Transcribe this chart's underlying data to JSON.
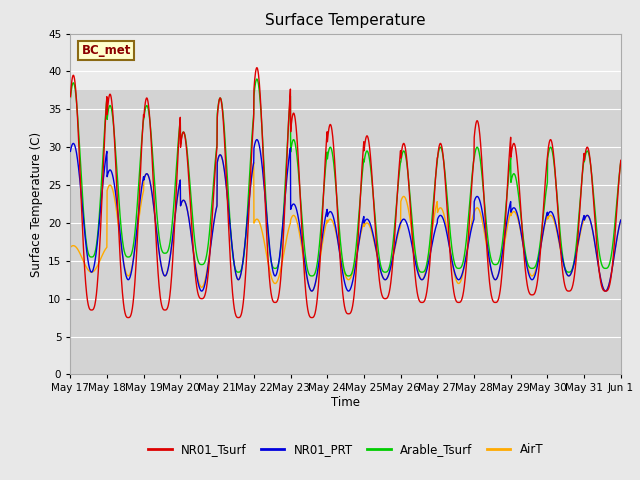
{
  "title": "Surface Temperature",
  "ylabel": "Surface Temperature (C)",
  "xlabel": "Time",
  "annotation": "BC_met",
  "ylim": [
    0,
    45
  ],
  "yticks": [
    0,
    5,
    10,
    15,
    20,
    25,
    30,
    35,
    40,
    45
  ],
  "fig_facecolor": "#e8e8e8",
  "ax_facecolor": "#d3d3d3",
  "colors": {
    "NR01_Tsurf": "#dd0000",
    "NR01_PRT": "#0000dd",
    "Arable_Tsurf": "#00cc00",
    "AirT": "#ffaa00"
  },
  "legend_labels": [
    "NR01_Tsurf",
    "NR01_PRT",
    "Arable_Tsurf",
    "AirT"
  ],
  "x_tick_labels": [
    "May 17",
    "May 18",
    "May 19",
    "May 20",
    "May 21",
    "May 22",
    "May 23",
    "May 24",
    "May 25",
    "May 26",
    "May 27",
    "May 28",
    "May 29",
    "May 30",
    "May 31",
    "Jun 1"
  ],
  "n_days": 15,
  "pts_per_day": 144,
  "peak_phase": 0.58,
  "sharpness": 3.0,
  "peaks_NR01_Tsurf": [
    39.5,
    37.0,
    36.5,
    32.0,
    36.5,
    40.5,
    34.5,
    33.0,
    31.5,
    30.5,
    30.5,
    33.5,
    30.5,
    31.0,
    30.0
  ],
  "troughs_NR01_Tsurf": [
    8.5,
    7.5,
    8.5,
    10.0,
    7.5,
    9.5,
    7.5,
    8.0,
    10.0,
    9.5,
    9.5,
    9.5,
    10.5,
    11.0,
    11.0
  ],
  "peaks_NR01_PRT": [
    30.5,
    27.0,
    26.5,
    23.0,
    29.0,
    31.0,
    22.5,
    21.5,
    20.5,
    20.5,
    21.0,
    23.5,
    22.0,
    21.5,
    21.0
  ],
  "troughs_NR01_PRT": [
    13.5,
    12.5,
    13.0,
    11.0,
    12.5,
    13.0,
    11.0,
    11.0,
    12.5,
    12.5,
    12.5,
    12.5,
    12.5,
    13.0,
    11.0
  ],
  "peaks_Arable_Tsurf": [
    38.5,
    35.5,
    35.5,
    32.0,
    36.5,
    39.0,
    31.0,
    30.0,
    29.5,
    29.5,
    30.0,
    30.0,
    26.5,
    30.0,
    29.5
  ],
  "troughs_Arable_Tsurf": [
    15.5,
    15.5,
    16.0,
    14.5,
    13.5,
    14.0,
    13.0,
    13.0,
    13.5,
    13.5,
    14.0,
    14.5,
    14.0,
    13.5,
    14.0
  ],
  "peaks_AirT": [
    17.0,
    25.0,
    26.5,
    23.0,
    29.0,
    20.5,
    21.0,
    20.5,
    20.0,
    23.5,
    22.0,
    22.0,
    21.5,
    21.0,
    21.0
  ],
  "troughs_AirT": [
    13.5,
    13.0,
    13.0,
    11.5,
    12.5,
    12.0,
    11.0,
    12.5,
    12.5,
    12.5,
    12.0,
    12.5,
    13.0,
    13.0,
    11.0
  ],
  "linewidth": 1.0
}
